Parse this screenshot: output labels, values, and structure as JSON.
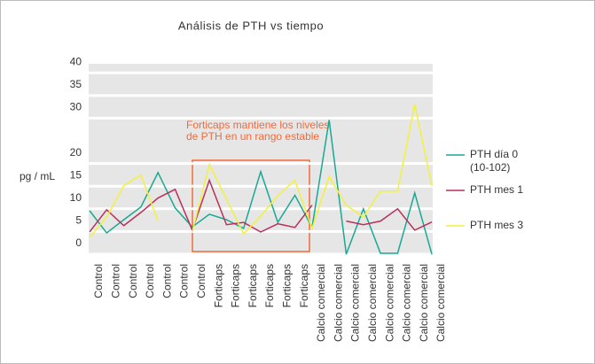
{
  "chart_data": {
    "type": "line",
    "title": "Análisis de PTH vs tiempo",
    "y_label": "pg / mL",
    "annotations": [
      "Forticaps mantiene los niveles",
      "de PTH en un rango estable"
    ],
    "categories": [
      "Control",
      "Control",
      "Control",
      "Control",
      "Control",
      "Control",
      "Control",
      "Forticaps",
      "Forticaps",
      "Forticaps",
      "Forticaps",
      "Forticaps",
      "Forticaps",
      "Calcio comercial",
      "Calcio comercial",
      "Calcio comercial",
      "Calcio comercial",
      "Calcio comercial",
      "Calcio comercial",
      "Calcio comercial",
      "Calcio comercial"
    ],
    "series": [
      {
        "name": "PTH día 0 (10-102)",
        "color": "#1aa894",
        "values": [
          9.6,
          4.7,
          7.6,
          10.4,
          18,
          10.2,
          6,
          8.8,
          7.6,
          5.7,
          18.2,
          7,
          13,
          5.9,
          29.6,
          0,
          10,
          0.2,
          0.2,
          13.5,
          0
        ]
      },
      {
        "name": "PTH mes 1",
        "color": "#b8315a",
        "values": [
          4.9,
          9.8,
          6.3,
          9.2,
          12.4,
          14.3,
          5.3,
          16.3,
          6.5,
          7,
          4.9,
          6.7,
          5.9,
          10.8,
          null,
          7.3,
          6.5,
          7.3,
          10,
          5.3,
          7.1
        ]
      },
      {
        "name": "PTH mes 3",
        "color": "#f2f23c",
        "values": [
          3.7,
          8.2,
          15.1,
          17.5,
          7.3,
          null,
          4.9,
          19.8,
          12.2,
          4.5,
          8.4,
          12.9,
          16.3,
          5.7,
          17.1,
          10.8,
          8.2,
          13.9,
          13.9,
          33.1,
          15.1
        ]
      }
    ],
    "ylim": [
      0,
      42
    ],
    "yticks": [
      0,
      5,
      10,
      15,
      20,
      30,
      35,
      40
    ],
    "grid": true
  }
}
